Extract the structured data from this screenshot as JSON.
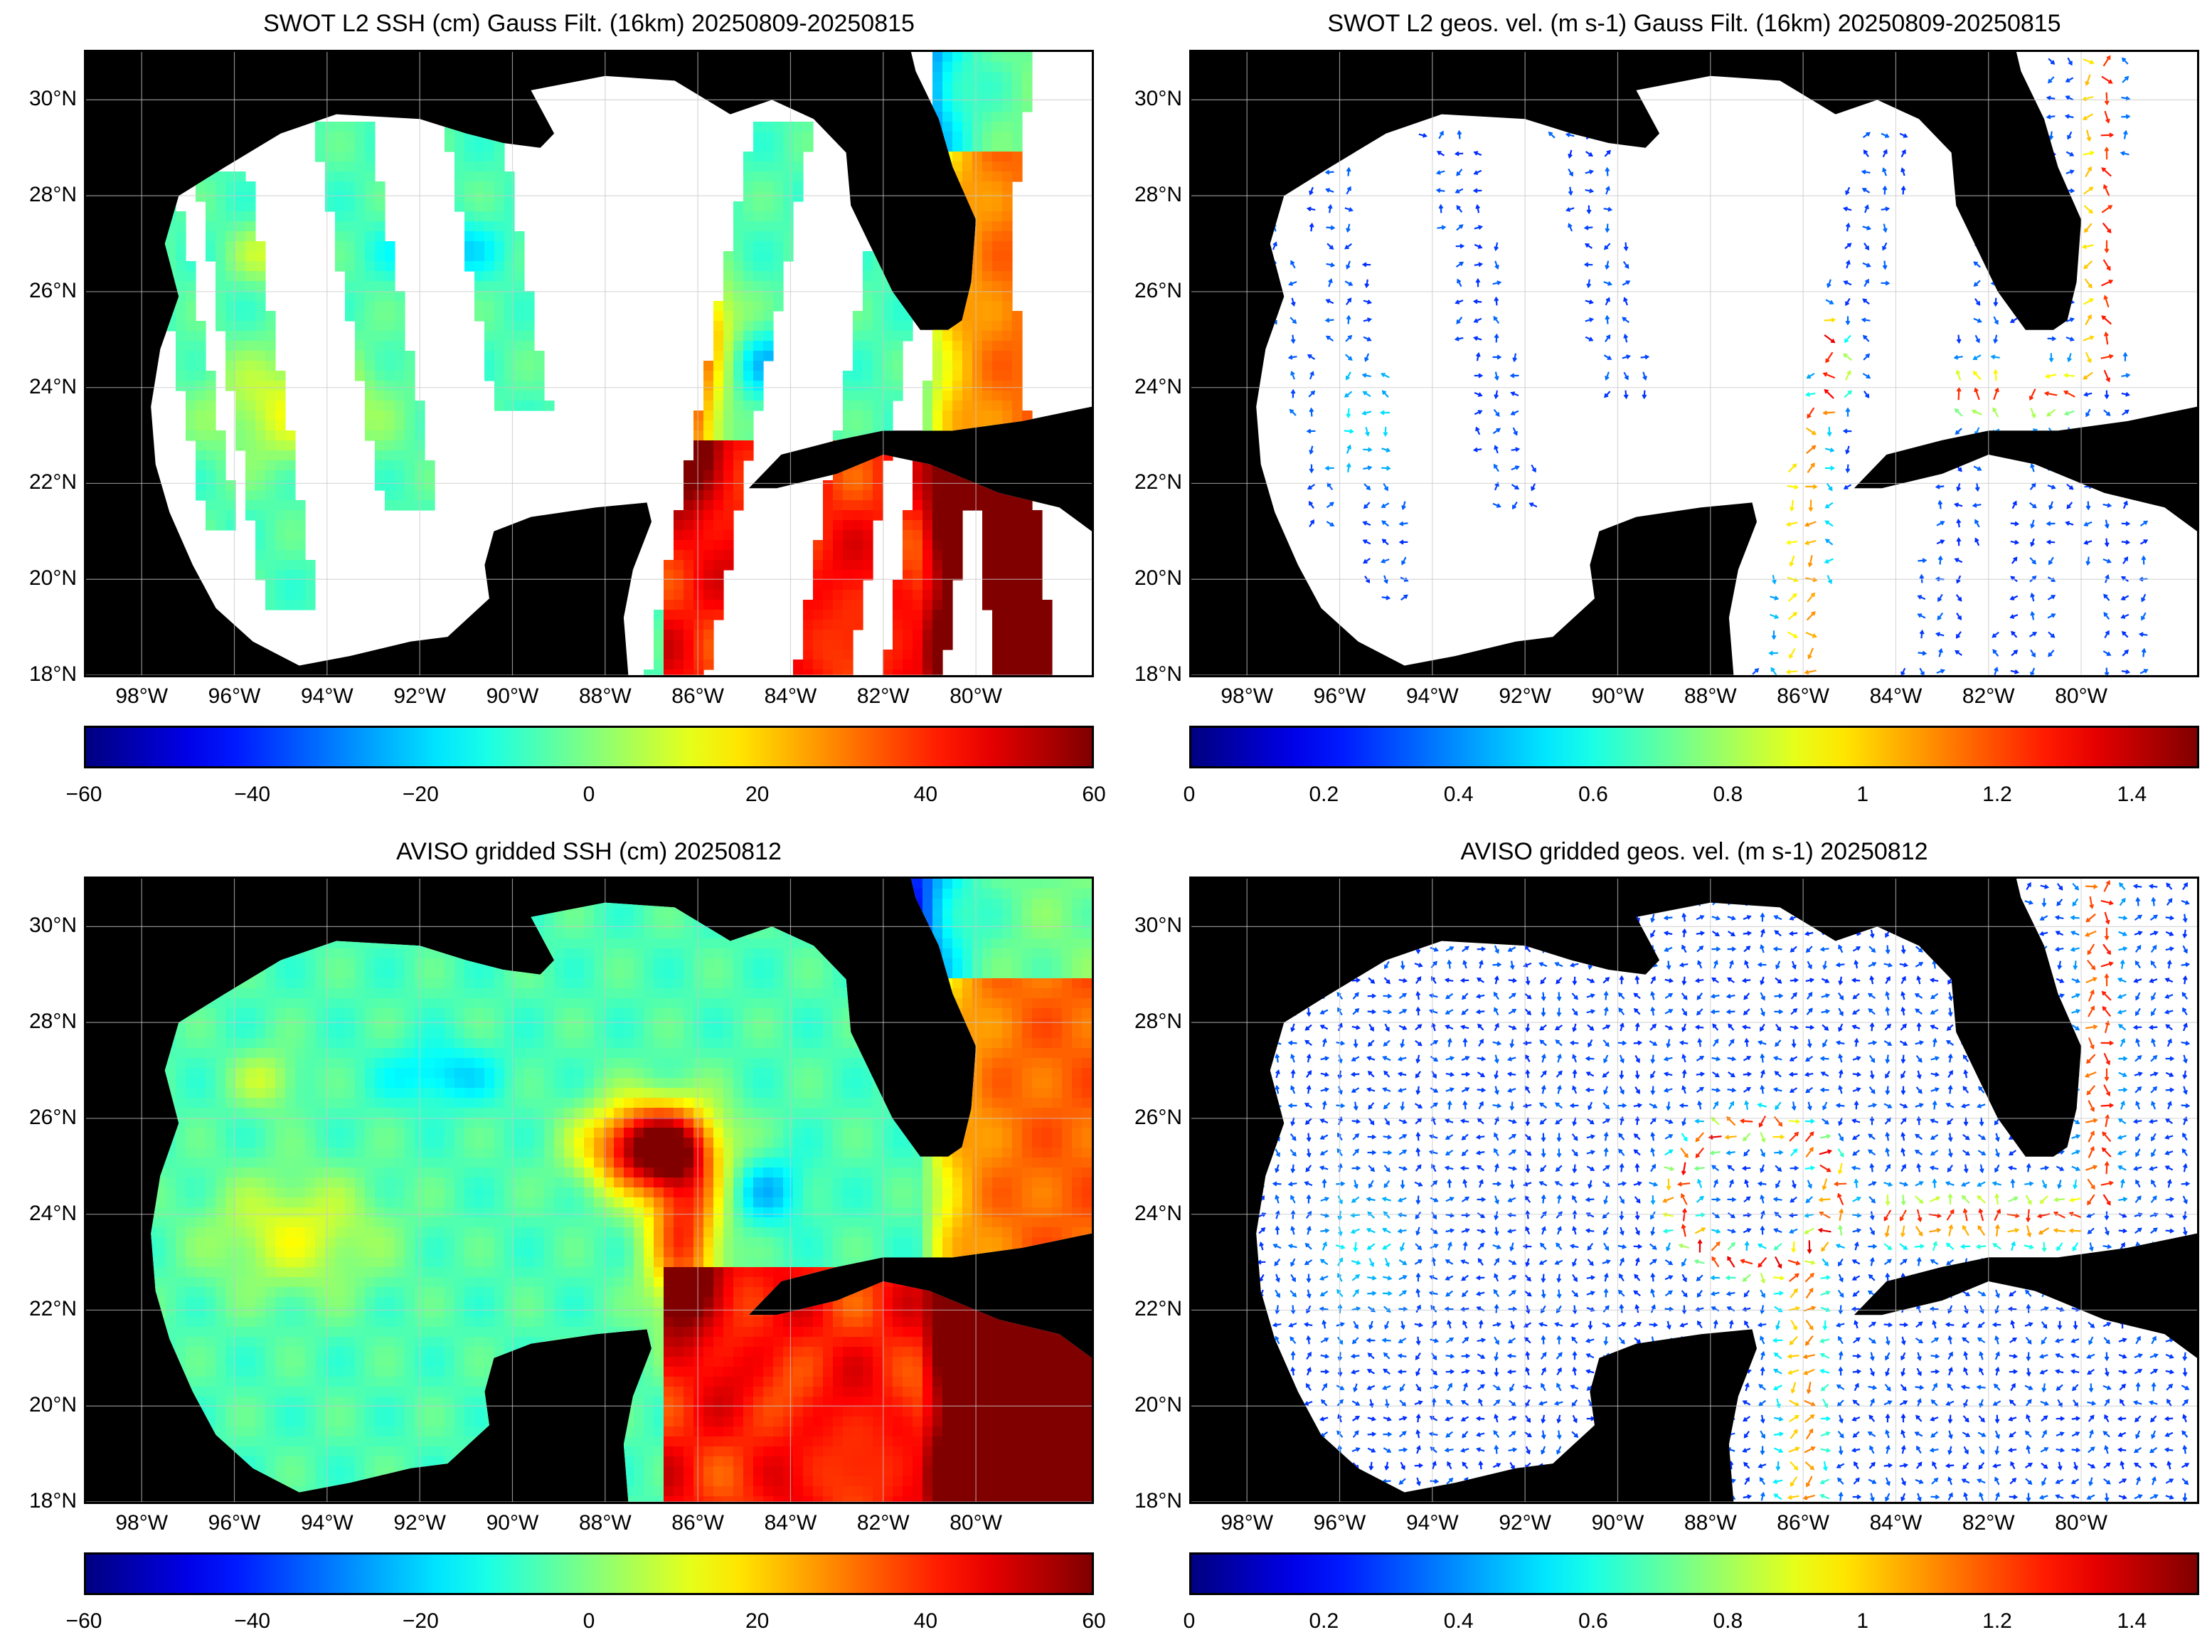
{
  "panels": [
    {
      "id": "swot-ssh",
      "title": "SWOT L2 SSH (cm) Gauss Filt. (16km) 20250809-20250815",
      "kind": "swath-ssh",
      "colorbar": {
        "min": -60,
        "max": 60,
        "ticks": [
          "-60",
          "-40",
          "-20",
          "0",
          "20",
          "40",
          "60"
        ],
        "tick_values": [
          -60,
          -40,
          -20,
          0,
          20,
          40,
          60
        ]
      }
    },
    {
      "id": "swot-vel",
      "title": "SWOT L2 geos. vel. (m s-1) Gauss Filt. (16km) 20250809-20250815",
      "kind": "swath-vel",
      "colorbar": {
        "min": 0,
        "max": 1.5,
        "ticks": [
          "0",
          "0.2",
          "0.4",
          "0.6",
          "0.8",
          "1",
          "1.2",
          "1.4"
        ],
        "tick_values": [
          0,
          0.2,
          0.4,
          0.6,
          0.8,
          1,
          1.2,
          1.4
        ]
      }
    },
    {
      "id": "aviso-ssh",
      "title": "AVISO gridded SSH (cm) 20250812",
      "kind": "grid-ssh",
      "colorbar": {
        "min": -60,
        "max": 60,
        "ticks": [
          "-60",
          "-40",
          "-20",
          "0",
          "20",
          "40",
          "60"
        ],
        "tick_values": [
          -60,
          -40,
          -20,
          0,
          20,
          40,
          60
        ]
      }
    },
    {
      "id": "aviso-vel",
      "title": "AVISO gridded geos. vel. (m s-1)  20250812",
      "kind": "grid-vel",
      "colorbar": {
        "min": 0,
        "max": 1.5,
        "ticks": [
          "0",
          "0.2",
          "0.4",
          "0.6",
          "0.8",
          "1",
          "1.2",
          "1.4"
        ],
        "tick_values": [
          0,
          0.2,
          0.4,
          0.6,
          0.8,
          1,
          1.2,
          1.4
        ]
      }
    }
  ],
  "map_extent": {
    "lon_min": -99.2,
    "lon_max": -77.5,
    "lat_min": 18,
    "lat_max": 31
  },
  "lon_ticks": [
    {
      "value": -98,
      "label": "98°W"
    },
    {
      "value": -96,
      "label": "96°W"
    },
    {
      "value": -94,
      "label": "94°W"
    },
    {
      "value": -92,
      "label": "92°W"
    },
    {
      "value": -90,
      "label": "90°W"
    },
    {
      "value": -88,
      "label": "88°W"
    },
    {
      "value": -86,
      "label": "86°W"
    },
    {
      "value": -84,
      "label": "84°W"
    },
    {
      "value": -82,
      "label": "82°W"
    },
    {
      "value": -80,
      "label": "80°W"
    }
  ],
  "lat_ticks": [
    {
      "value": 18,
      "label": "18°N"
    },
    {
      "value": 20,
      "label": "20°N"
    },
    {
      "value": 22,
      "label": "22°N"
    },
    {
      "value": 24,
      "label": "24°N"
    },
    {
      "value": 26,
      "label": "26°N"
    },
    {
      "value": 28,
      "label": "28°N"
    },
    {
      "value": 30,
      "label": "30°N"
    }
  ],
  "colors": {
    "land": "#000000",
    "no_data": "#ffffff",
    "grid": "#c8c8c8",
    "colormap": "jet"
  }
}
